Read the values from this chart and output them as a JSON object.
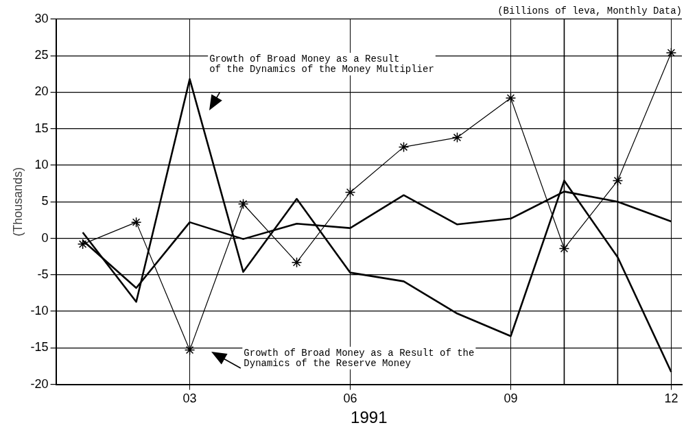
{
  "chart_data": {
    "type": "line",
    "subtitle": "(Billions of leva, Monthly Data)",
    "xlabel": "1991",
    "ylabel": "(Thousands)",
    "x": [
      1,
      2,
      3,
      4,
      5,
      6,
      7,
      8,
      9,
      10,
      11,
      12
    ],
    "xlim": [
      0.5,
      12.2
    ],
    "xticks": [
      {
        "value": 3,
        "label": "03"
      },
      {
        "value": 6,
        "label": "06"
      },
      {
        "value": 9,
        "label": "09"
      },
      {
        "value": 12,
        "label": "12"
      }
    ],
    "ylim": [
      -20,
      30
    ],
    "yticks": [
      -20,
      -15,
      -10,
      -5,
      0,
      5,
      10,
      15,
      20,
      25,
      30
    ],
    "grid": true,
    "legend": false,
    "series": [
      {
        "color": "#000000",
        "marker": "cross",
        "values": [
          -0.8,
          2.2,
          -15.3,
          4.7,
          -3.3,
          6.3,
          12.5,
          13.8,
          19.2,
          -1.4,
          7.9,
          25.4
        ]
      },
      {
        "color": "#000000",
        "marker": "none",
        "values": [
          0.8,
          -8.7,
          21.8,
          -4.6,
          5.4,
          -4.7,
          -5.9,
          -10.3,
          -13.4,
          7.9,
          -2.6,
          -18.3
        ]
      },
      {
        "color": "#000000",
        "marker": "none",
        "values": [
          -0.3,
          -6.8,
          2.2,
          -0.1,
          2.0,
          1.4,
          5.9,
          1.9,
          2.7,
          6.4,
          5.0,
          2.3
        ]
      }
    ],
    "ref_lines": [
      {
        "axis": "x",
        "value": 10
      },
      {
        "axis": "x",
        "value": 11
      }
    ],
    "annotations": [
      "Growth of Broad Money as a Result\nof the Dynamics of the Money Multiplier",
      "Growth of Broad Money as a Result of the\nDynamics of the Reserve Money"
    ]
  }
}
